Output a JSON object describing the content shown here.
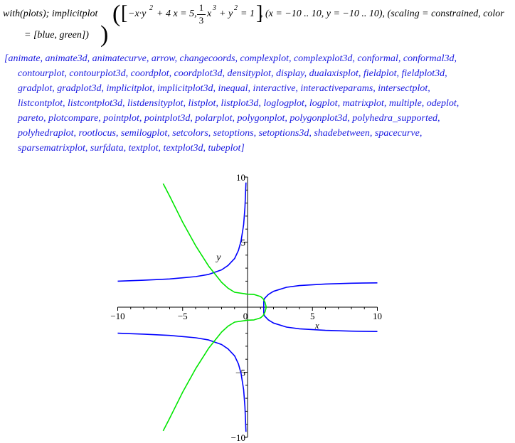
{
  "command": {
    "prefix": "with(plots); implicitplot",
    "eq1": "−x·y",
    "eq1_exp": "2",
    "eq1_rest": "+ 4 x = 5,",
    "frac_num": "1",
    "frac_den": "3",
    "eq2_var": "x",
    "eq2_exp": "3",
    "eq2_mid": "+ y",
    "eq2_exp2": "2",
    "eq2_rest": "= 1",
    "ranges": ", (x = −10 .. 10, y = −10 .. 10), (scaling = constrained, color",
    "line2": "= [blue, green])"
  },
  "output": {
    "lines": [
      "[animate, animate3d, animatecurve, arrow, changecoords, complexplot, complexplot3d, conformal, conformal3d,",
      "contourplot, contourplot3d, coordplot, coordplot3d, densityplot, display, dualaxisplot, fieldplot, fieldplot3d,",
      "gradplot, gradplot3d, implicitplot, implicitplot3d, inequal, interactive, interactiveparams, intersectplot,",
      "listcontplot, listcontplot3d, listdensityplot, listplot, listplot3d, loglogplot, logplot, matrixplot, multiple, odeplot,",
      "pareto, plotcompare, pointplot, pointplot3d, polarplot, polygonplot, polygonplot3d, polyhedra_supported,",
      "polyhedraplot, rootlocus, semilogplot, setcolors, setoptions, setoptions3d, shadebetween, spacecurve,",
      "sparsematrixplot, surfdata, textplot, textplot3d, tubeplot]"
    ]
  },
  "chart_data": {
    "type": "line",
    "title": "",
    "xlabel": "x",
    "ylabel": "y",
    "xlim": [
      -10,
      10
    ],
    "ylim": [
      -10,
      10
    ],
    "x_ticks": [
      -10,
      -5,
      0,
      5,
      10
    ],
    "y_ticks": [
      -10,
      -5,
      5,
      10
    ],
    "x_tick_labels": [
      "−10",
      "−5",
      "0",
      "5",
      "10"
    ],
    "y_tick_labels": [
      "−10",
      "−5",
      "5",
      "10"
    ],
    "scaling": "constrained",
    "series": [
      {
        "name": "−x·y^2 + 4x = 5",
        "color": "#0000ff",
        "segments": [
          [
            [
              -10,
              2.0
            ],
            [
              -8,
              2.07
            ],
            [
              -6,
              2.17
            ],
            [
              -4,
              2.35
            ],
            [
              -3,
              2.52
            ],
            [
              -2,
              2.87
            ],
            [
              -1.5,
              3.21
            ],
            [
              -1,
              3.74
            ],
            [
              -0.7,
              4.36
            ],
            [
              -0.5,
              5.1
            ],
            [
              -0.3,
              6.34
            ],
            [
              -0.2,
              7.62
            ],
            [
              -0.12,
              9.58
            ]
          ],
          [
            [
              -10,
              -2.0
            ],
            [
              -8,
              -2.07
            ],
            [
              -6,
              -2.17
            ],
            [
              -4,
              -2.35
            ],
            [
              -3,
              -2.52
            ],
            [
              -2,
              -2.87
            ],
            [
              -1.5,
              -3.21
            ],
            [
              -1,
              -3.74
            ],
            [
              -0.7,
              -4.36
            ],
            [
              -0.5,
              -5.1
            ],
            [
              -0.3,
              -6.34
            ],
            [
              -0.2,
              -7.62
            ],
            [
              -0.12,
              -9.58
            ]
          ],
          [
            [
              10,
              1.87
            ],
            [
              8,
              1.84
            ],
            [
              6,
              1.78
            ],
            [
              4,
              1.66
            ],
            [
              3,
              1.53
            ],
            [
              2,
              1.22
            ],
            [
              1.6,
              0.97
            ],
            [
              1.4,
              0.77
            ],
            [
              1.3,
              0.66
            ],
            [
              1.25,
              0.45
            ],
            [
              1.25,
              0
            ]
          ],
          [
            [
              10,
              -1.87
            ],
            [
              8,
              -1.84
            ],
            [
              6,
              -1.78
            ],
            [
              4,
              -1.66
            ],
            [
              3,
              -1.53
            ],
            [
              2,
              -1.22
            ],
            [
              1.6,
              -0.97
            ],
            [
              1.4,
              -0.77
            ],
            [
              1.3,
              -0.66
            ],
            [
              1.25,
              -0.45
            ],
            [
              1.25,
              0
            ]
          ]
        ]
      },
      {
        "name": "(1/3)x^3 + y^2 = 1",
        "color": "#00e600",
        "segments": [
          [
            [
              -6.5,
              9.5
            ],
            [
              -6,
              8.54
            ],
            [
              -5,
              6.53
            ],
            [
              -4,
              4.73
            ],
            [
              -3,
              3.16
            ],
            [
              -2,
              1.91
            ],
            [
              -1.5,
              1.46
            ],
            [
              -1,
              1.15
            ],
            [
              0,
              1.0
            ],
            [
              0.5,
              0.98
            ],
            [
              1,
              0.82
            ],
            [
              1.2,
              0.65
            ],
            [
              1.35,
              0.36
            ],
            [
              1.44,
              0
            ]
          ],
          [
            [
              -6.5,
              -9.5
            ],
            [
              -6,
              -8.54
            ],
            [
              -5,
              -6.53
            ],
            [
              -4,
              -4.73
            ],
            [
              -3,
              -3.16
            ],
            [
              -2,
              -1.91
            ],
            [
              -1.5,
              -1.46
            ],
            [
              -1,
              -1.15
            ],
            [
              0,
              -1.0
            ],
            [
              0.5,
              -0.98
            ],
            [
              1,
              -0.82
            ],
            [
              1.2,
              -0.65
            ],
            [
              1.35,
              -0.36
            ],
            [
              1.44,
              0
            ]
          ]
        ]
      }
    ]
  }
}
